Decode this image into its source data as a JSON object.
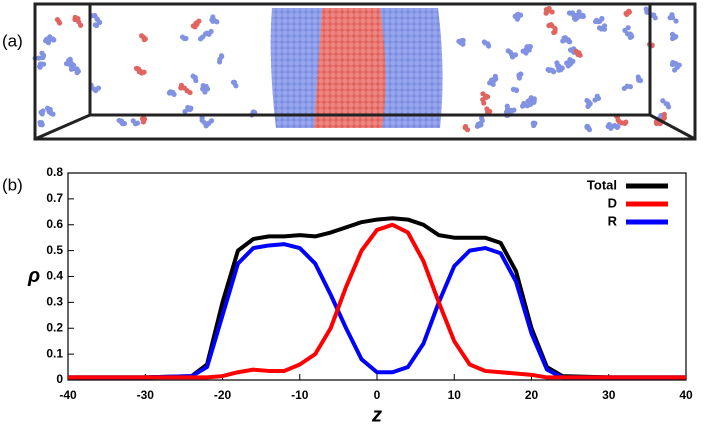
{
  "panel_labels": [
    "(a)",
    "(b)"
  ],
  "chart_data": {
    "type": "line",
    "x_label": "z",
    "y_label": "ρ",
    "x": [
      -40,
      -30,
      -24,
      -22,
      -20,
      -18,
      -16,
      -14,
      -12,
      -10,
      -8,
      -6,
      -4,
      -2,
      0,
      2,
      4,
      6,
      8,
      10,
      12,
      14,
      16,
      18,
      20,
      22,
      24,
      30,
      40
    ],
    "series": [
      {
        "name": "Total",
        "color": "#000000",
        "values": [
          0.01,
          0.01,
          0.015,
          0.06,
          0.3,
          0.5,
          0.545,
          0.555,
          0.555,
          0.56,
          0.555,
          0.57,
          0.59,
          0.61,
          0.62,
          0.625,
          0.62,
          0.6,
          0.56,
          0.55,
          0.55,
          0.55,
          0.53,
          0.42,
          0.2,
          0.05,
          0.015,
          0.01,
          0.01
        ]
      },
      {
        "name": "D",
        "color": "#ff0000",
        "values": [
          0.01,
          0.01,
          0.01,
          0.01,
          0.015,
          0.03,
          0.04,
          0.035,
          0.035,
          0.06,
          0.1,
          0.2,
          0.36,
          0.5,
          0.58,
          0.6,
          0.57,
          0.46,
          0.3,
          0.15,
          0.06,
          0.035,
          0.03,
          0.025,
          0.02,
          0.01,
          0.01,
          0.01,
          0.01
        ]
      },
      {
        "name": "R",
        "color": "#0000ff",
        "values": [
          0.01,
          0.01,
          0.015,
          0.05,
          0.25,
          0.45,
          0.51,
          0.52,
          0.525,
          0.51,
          0.45,
          0.33,
          0.2,
          0.08,
          0.03,
          0.03,
          0.05,
          0.14,
          0.3,
          0.44,
          0.5,
          0.51,
          0.49,
          0.38,
          0.18,
          0.04,
          0.01,
          0.01,
          0.01
        ]
      }
    ],
    "xlim": [
      -40,
      40
    ],
    "xticks": [
      -40,
      -30,
      -20,
      -10,
      0,
      10,
      20,
      30,
      40
    ],
    "ylim": [
      0,
      0.8
    ],
    "yticks": [
      0,
      0.1,
      0.2,
      0.3,
      0.4,
      0.5,
      0.6,
      0.7,
      0.8
    ],
    "legend": "upper right"
  }
}
